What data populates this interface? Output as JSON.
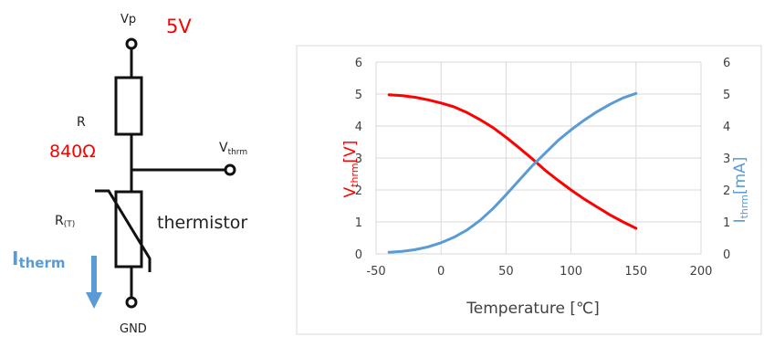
{
  "circuit": {
    "vp_label": "Vp",
    "supply_value": "5V",
    "resistor_name": "R",
    "resistor_value": "840Ω",
    "vout_base": "V",
    "vout_sub": "thrm",
    "rt_base": "R",
    "rt_sub": "(T)",
    "thermistor_label": "thermistor",
    "current_base": "I",
    "current_sub": "therm",
    "gnd_label": "GND"
  },
  "colors": {
    "voltage_curve": "#ff0000",
    "current_curve": "#5b9bd5",
    "wire": "#111111",
    "grid": "#d9d9d9"
  },
  "chart_data": {
    "type": "line",
    "xlabel": "Temperature [℃]",
    "ylabel_left": {
      "base": "V",
      "sub": "thrm",
      "unit": "[V]"
    },
    "ylabel_right": {
      "base": "I",
      "sub": "thrm",
      "unit": "[mA]"
    },
    "xlim": [
      -50,
      200
    ],
    "ylim_left": [
      0,
      6
    ],
    "ylim_right": [
      0,
      6
    ],
    "x_ticks": [
      "-50",
      "0",
      "50",
      "100",
      "150",
      "200"
    ],
    "y_ticks_left": [
      "0",
      "1",
      "2",
      "3",
      "4",
      "5",
      "6"
    ],
    "y_ticks_right": [
      "0",
      "1",
      "2",
      "3",
      "4",
      "5",
      "6"
    ],
    "grid": true,
    "series": [
      {
        "axis": "left",
        "color": "#ff0000",
        "x": [
          -40,
          -30,
          -20,
          -10,
          0,
          10,
          20,
          30,
          40,
          50,
          60,
          70,
          80,
          90,
          100,
          110,
          120,
          130,
          140,
          150
        ],
        "y": [
          4.98,
          4.95,
          4.9,
          4.82,
          4.72,
          4.6,
          4.42,
          4.2,
          3.95,
          3.65,
          3.32,
          2.98,
          2.62,
          2.3,
          2.0,
          1.72,
          1.47,
          1.22,
          1.0,
          0.8
        ]
      },
      {
        "axis": "right",
        "color": "#5b9bd5",
        "x": [
          -40,
          -30,
          -20,
          -10,
          0,
          10,
          20,
          30,
          40,
          50,
          60,
          70,
          80,
          90,
          100,
          110,
          120,
          130,
          140,
          150
        ],
        "y": [
          0.05,
          0.08,
          0.13,
          0.22,
          0.35,
          0.52,
          0.75,
          1.05,
          1.42,
          1.85,
          2.3,
          2.75,
          3.15,
          3.55,
          3.88,
          4.18,
          4.45,
          4.68,
          4.88,
          5.02
        ]
      }
    ]
  }
}
